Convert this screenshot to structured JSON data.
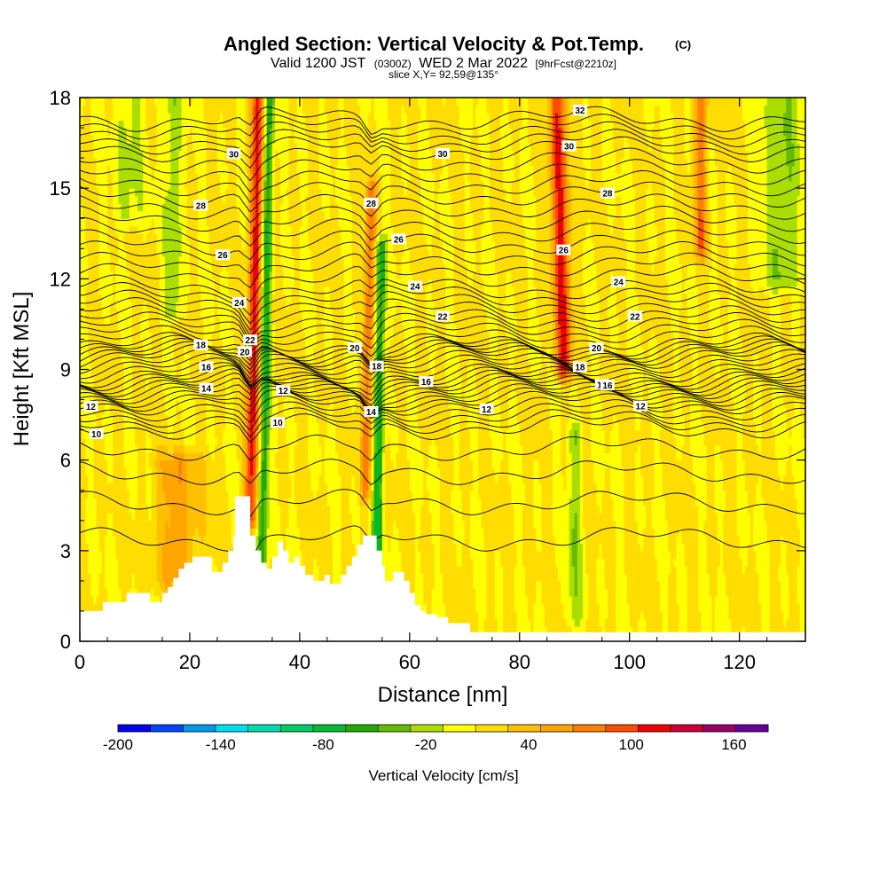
{
  "title": {
    "main": "Angled Section: Vertical Velocity & Pot.Temp.",
    "main_suffix": "(C)",
    "line2_a": "Valid 1200 JST",
    "line2_b": "(0300Z)",
    "line2_c": "WED 2 Mar 2022",
    "line2_d": "[9hrFcst@2210z]",
    "line3": "slice X,Y= 92,59@135°"
  },
  "chart_data": {
    "type": "heatmap",
    "xlabel": "Distance [nm]",
    "ylabel": "Height [Kft MSL]",
    "xlim": [
      0,
      132
    ],
    "ylim": [
      0,
      18
    ],
    "xticks": [
      0,
      20,
      40,
      60,
      80,
      100,
      120
    ],
    "yticks": [
      0,
      3,
      6,
      9,
      12,
      15,
      18
    ],
    "colorbar": {
      "title": "Vertical Velocity [cm/s]",
      "range": [
        -200,
        180
      ],
      "step": 20,
      "tick_labels": [
        {
          "value": -200,
          "text": "-200"
        },
        {
          "value": -140,
          "text": "-140"
        },
        {
          "value": -80,
          "text": "-80"
        },
        {
          "value": -20,
          "text": "-20"
        },
        {
          "value": 40,
          "text": "40"
        },
        {
          "value": 100,
          "text": "100"
        },
        {
          "value": 160,
          "text": "160"
        }
      ],
      "colors": [
        "#0000ee",
        "#0044ff",
        "#0099ee",
        "#00ddee",
        "#00ddaa",
        "#00cc66",
        "#00bb33",
        "#22aa00",
        "#66bb00",
        "#aadd00",
        "#ffff00",
        "#ffdd00",
        "#ffc000",
        "#ffa500",
        "#ff7f00",
        "#ff4c00",
        "#ee0000",
        "#cc0033",
        "#990066",
        "#660099"
      ]
    },
    "vertical_velocity_features": [
      {
        "x_center": 31,
        "x_top_shift": 1.5,
        "y_bottom": 4,
        "y_top": 18,
        "peak": 105,
        "halfwidth": 1.2
      },
      {
        "x_center": 33,
        "x_top_shift": 1.5,
        "y_bottom": 1,
        "y_top": 18,
        "peak": -85,
        "halfwidth": 0.9
      },
      {
        "x_center": 52,
        "x_top_shift": 1,
        "y_bottom": 5,
        "y_top": 15,
        "peak": 70,
        "halfwidth": 1.0
      },
      {
        "x_center": 54,
        "x_top_shift": 0.8,
        "y_bottom": 1.8,
        "y_top": 13,
        "peak": -90,
        "halfwidth": 0.9
      },
      {
        "x_center": 88,
        "x_top_shift": -1,
        "y_bottom": 9,
        "y_top": 18,
        "peak": 100,
        "halfwidth": 1.6
      },
      {
        "x_center": 113,
        "x_top_shift": 0,
        "y_bottom": 13,
        "y_top": 18,
        "peak": 70,
        "halfwidth": 1.2
      },
      {
        "x_center": 90,
        "x_top_shift": 0,
        "y_bottom": 0.8,
        "y_top": 7,
        "peak": -40,
        "halfwidth": 1.2
      },
      {
        "x_center": 17,
        "x_top_shift": 0,
        "y_bottom": 11,
        "y_top": 18,
        "peak": -40,
        "halfwidth": 1.5
      },
      {
        "x_center": 9,
        "x_top_shift": 0,
        "y_bottom": 14,
        "y_top": 18,
        "peak": -30,
        "halfwidth": 2.5
      },
      {
        "x_center": 128,
        "x_top_shift": 0,
        "y_bottom": 12,
        "y_top": 18,
        "peak": -40,
        "halfwidth": 3.5
      },
      {
        "x_center": 18,
        "x_top_shift": 0,
        "y_bottom": 2,
        "y_top": 6,
        "peak": 50,
        "halfwidth": 4.0
      }
    ],
    "terrain_kft": [
      [
        0,
        1.0
      ],
      [
        4.2,
        1.0
      ],
      [
        4.2,
        1.3
      ],
      [
        8.5,
        1.3
      ],
      [
        8.5,
        1.6
      ],
      [
        12.8,
        1.6
      ],
      [
        12.8,
        1.3
      ],
      [
        15,
        1.3
      ],
      [
        15,
        1.6
      ],
      [
        16,
        1.6
      ],
      [
        16,
        1.8
      ],
      [
        17,
        1.8
      ],
      [
        17,
        2.1
      ],
      [
        18,
        2.1
      ],
      [
        18,
        2.4
      ],
      [
        19,
        2.4
      ],
      [
        19,
        2.6
      ],
      [
        20.5,
        2.6
      ],
      [
        20.5,
        2.8
      ],
      [
        24,
        2.8
      ],
      [
        24,
        2.3
      ],
      [
        26,
        2.3
      ],
      [
        26,
        2.6
      ],
      [
        27,
        2.6
      ],
      [
        27,
        3.0
      ],
      [
        27.9,
        3.0
      ],
      [
        27.9,
        3.5
      ],
      [
        28.2,
        3.5
      ],
      [
        28.2,
        4.8
      ],
      [
        31,
        4.8
      ],
      [
        31,
        3.5
      ],
      [
        32,
        3.5
      ],
      [
        32,
        3.0
      ],
      [
        33,
        3.0
      ],
      [
        33,
        2.6
      ],
      [
        34,
        2.6
      ],
      [
        34,
        2.4
      ],
      [
        35,
        2.4
      ],
      [
        35,
        2.8
      ],
      [
        36,
        2.8
      ],
      [
        36,
        3.3
      ],
      [
        37,
        3.3
      ],
      [
        37,
        3.0
      ],
      [
        38,
        3.0
      ],
      [
        38,
        2.6
      ],
      [
        39,
        2.6
      ],
      [
        39,
        2.8
      ],
      [
        40,
        2.8
      ],
      [
        40,
        2.5
      ],
      [
        41,
        2.5
      ],
      [
        41,
        2.2
      ],
      [
        42.5,
        2.2
      ],
      [
        42.5,
        2.0
      ],
      [
        44.5,
        2.0
      ],
      [
        44.5,
        2.2
      ],
      [
        45.5,
        2.2
      ],
      [
        45.5,
        1.9
      ],
      [
        47.5,
        1.9
      ],
      [
        47.5,
        2.2
      ],
      [
        48.5,
        2.2
      ],
      [
        48.5,
        2.5
      ],
      [
        49.5,
        2.5
      ],
      [
        49.5,
        2.8
      ],
      [
        50.5,
        2.8
      ],
      [
        50.5,
        3.2
      ],
      [
        51.5,
        3.2
      ],
      [
        51.5,
        3.5
      ],
      [
        54,
        3.5
      ],
      [
        54,
        3.0
      ],
      [
        55,
        3.0
      ],
      [
        55,
        2.5
      ],
      [
        55.5,
        2.5
      ],
      [
        55.5,
        2.0
      ],
      [
        57,
        2.0
      ],
      [
        57,
        2.3
      ],
      [
        59,
        2.3
      ],
      [
        59,
        2.0
      ],
      [
        60,
        2.0
      ],
      [
        60,
        1.6
      ],
      [
        61,
        1.6
      ],
      [
        61,
        1.2
      ],
      [
        62,
        1.2
      ],
      [
        62,
        1.0
      ],
      [
        63,
        1.0
      ],
      [
        63,
        0.9
      ],
      [
        65,
        0.9
      ],
      [
        65,
        0.8
      ],
      [
        67,
        0.8
      ],
      [
        67,
        0.6
      ],
      [
        71,
        0.6
      ],
      [
        71,
        0.3
      ],
      [
        132,
        0.3
      ]
    ],
    "theta_contours": [
      {
        "value": 10,
        "label": "10",
        "y": 7.1,
        "labels_at_x": [
          3,
          36
        ]
      },
      {
        "value": 12,
        "label": "12",
        "y": 7.9,
        "labels_at_x": [
          2,
          37,
          74,
          102
        ]
      },
      {
        "value": 14,
        "label": "14",
        "y": 8.4,
        "labels_at_x": [
          23,
          53,
          95
        ]
      },
      {
        "value": 16,
        "label": "16",
        "y": 8.8,
        "labels_at_x": [
          23,
          63,
          96
        ]
      },
      {
        "value": 18,
        "label": "18",
        "y": 9.4,
        "labels_at_x": [
          22,
          54,
          91
        ]
      },
      {
        "value": 20,
        "label": "20",
        "y": 9.8,
        "labels_at_x": [
          30,
          50,
          94
        ]
      },
      {
        "value": 22,
        "label": "22",
        "y": 10.7,
        "labels_at_x": [
          31,
          66,
          101
        ]
      },
      {
        "value": 24,
        "label": "24",
        "y": 11.7,
        "labels_at_x": [
          29,
          61,
          98
        ]
      },
      {
        "value": 26,
        "label": "26",
        "y": 13.2,
        "labels_at_x": [
          26,
          58,
          88
        ]
      },
      {
        "value": 28,
        "label": "28",
        "y": 14.8,
        "labels_at_x": [
          22,
          53,
          96
        ]
      },
      {
        "value": 30,
        "label": "30",
        "y": 16.3,
        "labels_at_x": [
          28,
          66,
          89
        ]
      },
      {
        "value": 32,
        "label": "32",
        "y": 17.3,
        "labels_at_x": [
          91
        ]
      }
    ],
    "grid": false
  }
}
